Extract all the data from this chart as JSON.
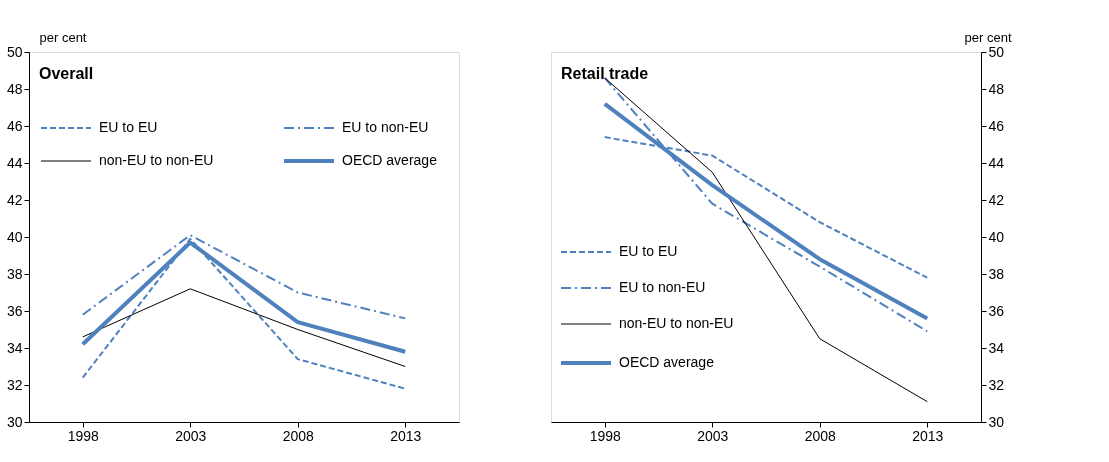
{
  "chart_data": [
    {
      "type": "line",
      "title": "Overall",
      "ylabel": "per cent",
      "categories": [
        "1998",
        "2003",
        "2008",
        "2013"
      ],
      "ylim": [
        30,
        50
      ],
      "yticks": [
        30,
        32,
        34,
        36,
        38,
        40,
        42,
        44,
        46,
        48,
        50
      ],
      "grid": false,
      "legend": "top",
      "series": [
        {
          "name": "EU to EU",
          "color": "#4f81bd",
          "line_style": "dashed",
          "values": [
            32.4,
            39.9,
            33.4,
            31.8
          ]
        },
        {
          "name": "EU to non-EU",
          "color": "#4f81bd",
          "line_style": "dashdot",
          "values": [
            35.8,
            40.1,
            37.0,
            35.6
          ]
        },
        {
          "name": "non-EU to non-EU",
          "color": "#000000",
          "line_style": "solid",
          "values": [
            34.6,
            37.2,
            35.0,
            33.0
          ]
        },
        {
          "name": "OECD average",
          "color": "#4f81bd",
          "line_style": "solid",
          "values": [
            34.2,
            39.7,
            35.4,
            33.8
          ]
        }
      ]
    },
    {
      "type": "line",
      "title": "Retail trade",
      "y2label": "per cent",
      "categories": [
        "1998",
        "2003",
        "2008",
        "2013"
      ],
      "y2lim": [
        30,
        50
      ],
      "y2ticks": [
        30,
        32,
        34,
        36,
        38,
        40,
        42,
        44,
        46,
        48,
        50
      ],
      "grid": false,
      "legend": "bottom left",
      "series": [
        {
          "name": "EU to EU",
          "color": "#4f81bd",
          "line_style": "dashed",
          "axis": "y2",
          "values": [
            45.4,
            44.4,
            40.8,
            37.8
          ]
        },
        {
          "name": "EU to non-EU",
          "color": "#4f81bd",
          "line_style": "dashdot",
          "axis": "y2",
          "values": [
            48.6,
            41.8,
            38.4,
            34.9
          ]
        },
        {
          "name": "non-EU to non-EU",
          "color": "#000000",
          "line_style": "solid",
          "axis": "y2",
          "values": [
            48.6,
            43.5,
            34.5,
            31.1
          ]
        },
        {
          "name": "OECD average",
          "color": "#4f81bd",
          "line_style": "solid",
          "axis": "y2",
          "values": [
            47.2,
            42.8,
            38.8,
            35.6
          ]
        }
      ]
    }
  ]
}
